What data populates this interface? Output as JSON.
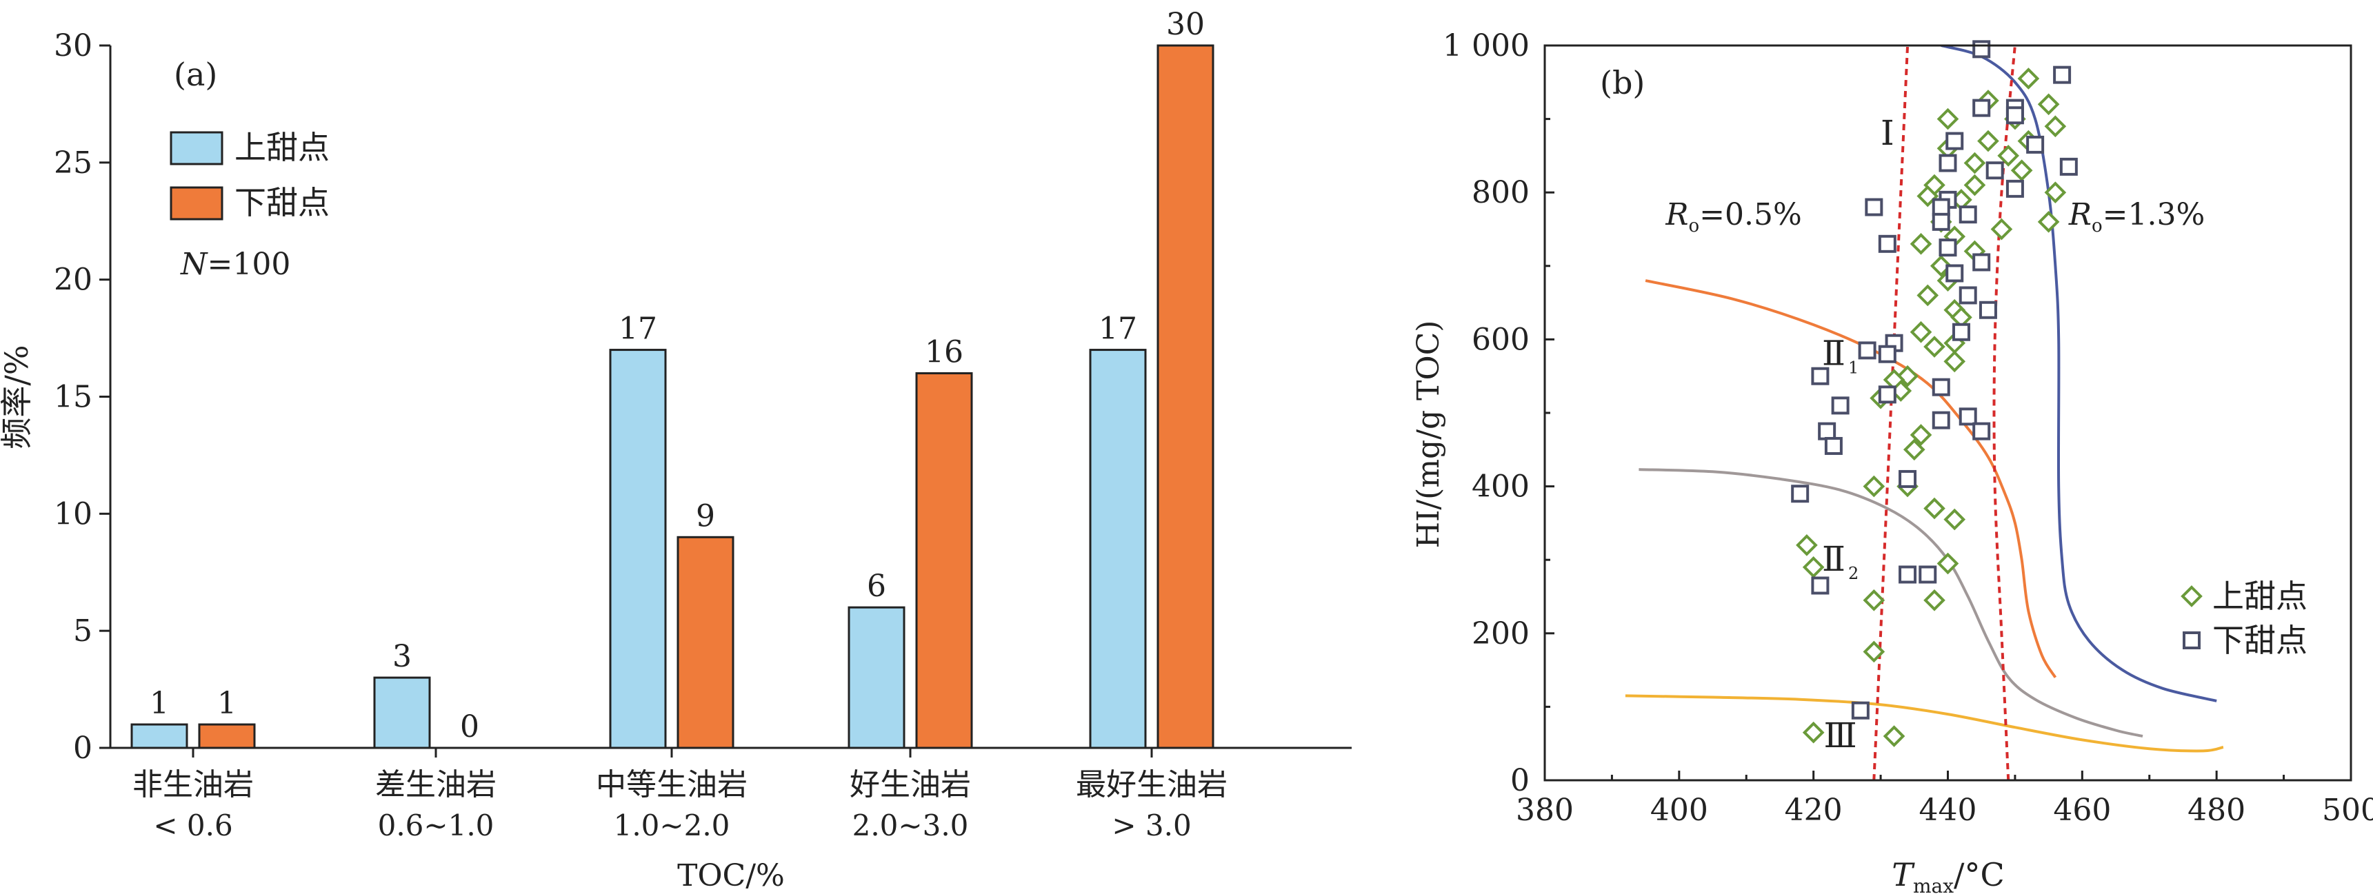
{
  "chart_data": [
    {
      "type": "bar",
      "panel_label": "(a)",
      "ylabel": "频率/%",
      "xlabel": "TOC/%",
      "ylim": [
        0,
        30
      ],
      "yticks": [
        0,
        5,
        10,
        15,
        20,
        25,
        30
      ],
      "categories": [
        {
          "name": "非生油岩",
          "range": "< 0.6"
        },
        {
          "name": "差生油岩",
          "range": "0.6~1.0"
        },
        {
          "name": "中等生油岩",
          "range": "1.0~2.0"
        },
        {
          "name": "好生油岩",
          "range": "2.0~3.0"
        },
        {
          "name": "最好生油岩",
          "range": "> 3.0"
        }
      ],
      "series": [
        {
          "name": "上甜点",
          "color": "#a6d8ef",
          "values": [
            1,
            3,
            17,
            6,
            17
          ]
        },
        {
          "name": "下甜点",
          "color": "#ef7b3a",
          "values": [
            1,
            0,
            9,
            16,
            30
          ]
        }
      ],
      "annotation": {
        "prefix": "N",
        "text": "=100"
      },
      "legend": "top-left",
      "grid": false
    },
    {
      "type": "scatter",
      "panel_label": "(b)",
      "ylabel": "HI/(mg/g TOC)",
      "xlabel": {
        "symbol": "T",
        "subscript": "max",
        "unit": "/°C"
      },
      "xlim": [
        380,
        500
      ],
      "ylim": [
        0,
        1000
      ],
      "xticks": [
        380,
        400,
        420,
        440,
        460,
        480,
        500
      ],
      "yticks": [
        {
          "value": 0,
          "label": "0"
        },
        {
          "value": 200,
          "label": "200"
        },
        {
          "value": 400,
          "label": "400"
        },
        {
          "value": 600,
          "label": "600"
        },
        {
          "value": 800,
          "label": "800"
        },
        {
          "value": 1000,
          "label": "1 000"
        }
      ],
      "regions": [
        {
          "label": "Ⅰ",
          "sub": "",
          "x": 431,
          "y": 880
        },
        {
          "label": "Ⅱ",
          "sub": "1",
          "x": 424,
          "y": 580
        },
        {
          "label": "Ⅱ",
          "sub": "2",
          "x": 424,
          "y": 300
        },
        {
          "label": "Ⅲ",
          "sub": "",
          "x": 424,
          "y": 60
        }
      ],
      "ro_lines": [
        {
          "prefix": "R",
          "sub": "o",
          "value": "=0.5%",
          "label_x": 398,
          "label_y": 770,
          "points": [
            [
              429,
              0
            ],
            [
              430,
              200
            ],
            [
              431,
              400
            ],
            [
              432,
              600
            ],
            [
              433,
              800
            ],
            [
              434,
              1000
            ]
          ]
        },
        {
          "prefix": "R",
          "sub": "o",
          "value": "=1.3%",
          "label_x": 458,
          "label_y": 770,
          "points": [
            [
              449,
              0
            ],
            [
              448,
              200
            ],
            [
              447,
              400
            ],
            [
              447,
              600
            ],
            [
              448,
              800
            ],
            [
              450,
              1000
            ]
          ]
        }
      ],
      "type_curves": [
        {
          "color": "#4a5aa0",
          "points": [
            [
              439,
              1000
            ],
            [
              445,
              985
            ],
            [
              450,
              950
            ],
            [
              453,
              900
            ],
            [
              455,
              800
            ],
            [
              456,
              700
            ],
            [
              456.5,
              600
            ],
            [
              456.5,
              400
            ],
            [
              457,
              300
            ],
            [
              458,
              240
            ],
            [
              461,
              190
            ],
            [
              466,
              150
            ],
            [
              472,
              125
            ],
            [
              480,
              108
            ]
          ]
        },
        {
          "color": "#ef7b3a",
          "points": [
            [
              395,
              680
            ],
            [
              408,
              655
            ],
            [
              420,
              620
            ],
            [
              430,
              580
            ],
            [
              437,
              540
            ],
            [
              442,
              490
            ],
            [
              446,
              440
            ],
            [
              448.5,
              390
            ],
            [
              450,
              350
            ],
            [
              451,
              300
            ],
            [
              452,
              230
            ],
            [
              454,
              170
            ],
            [
              456,
              140
            ]
          ]
        },
        {
          "color": "#a09898",
          "points": [
            [
              394,
              423
            ],
            [
              405,
              420
            ],
            [
              415,
              410
            ],
            [
              424,
              395
            ],
            [
              431,
              370
            ],
            [
              436,
              340
            ],
            [
              440,
              300
            ],
            [
              443,
              250
            ],
            [
              446,
              190
            ],
            [
              449,
              140
            ],
            [
              453,
              110
            ],
            [
              459,
              85
            ],
            [
              465,
              68
            ],
            [
              469,
              60
            ]
          ]
        },
        {
          "color": "#f2b233",
          "points": [
            [
              392,
              115
            ],
            [
              405,
              113
            ],
            [
              418,
              110
            ],
            [
              430,
              103
            ],
            [
              440,
              90
            ],
            [
              450,
              72
            ],
            [
              460,
              55
            ],
            [
              470,
              43
            ],
            [
              478,
              40
            ],
            [
              481,
              45
            ]
          ]
        }
      ],
      "series": [
        {
          "name": "上甜点",
          "marker": "diamond",
          "color": "#6a9a3a",
          "points": [
            [
              452,
              955
            ],
            [
              446,
              925
            ],
            [
              440,
              900
            ],
            [
              455,
              920
            ],
            [
              450,
              900
            ],
            [
              456,
              890
            ],
            [
              446,
              870
            ],
            [
              452,
              870
            ],
            [
              440,
              860
            ],
            [
              449,
              850
            ],
            [
              444,
              840
            ],
            [
              451,
              830
            ],
            [
              438,
              810
            ],
            [
              444,
              810
            ],
            [
              437,
              795
            ],
            [
              442,
              790
            ],
            [
              456,
              800
            ],
            [
              455,
              760
            ],
            [
              439,
              760
            ],
            [
              448,
              750
            ],
            [
              441,
              740
            ],
            [
              436,
              730
            ],
            [
              444,
              720
            ],
            [
              439,
              700
            ],
            [
              440,
              680
            ],
            [
              437,
              660
            ],
            [
              441,
              640
            ],
            [
              442,
              630
            ],
            [
              436,
              610
            ],
            [
              441,
              595
            ],
            [
              438,
              590
            ],
            [
              441,
              570
            ],
            [
              434,
              550
            ],
            [
              432,
              545
            ],
            [
              433,
              530
            ],
            [
              430,
              520
            ],
            [
              436,
              470
            ],
            [
              435,
              450
            ],
            [
              434,
              400
            ],
            [
              429,
              400
            ],
            [
              438,
              370
            ],
            [
              441,
              355
            ],
            [
              419,
              320
            ],
            [
              420,
              290
            ],
            [
              440,
              295
            ],
            [
              438,
              245
            ],
            [
              429,
              245
            ],
            [
              429,
              175
            ],
            [
              420,
              65
            ],
            [
              432,
              60
            ]
          ]
        },
        {
          "name": "下甜点",
          "marker": "square",
          "color": "#4a4e68",
          "points": [
            [
              445,
              995
            ],
            [
              457,
              960
            ],
            [
              445,
              915
            ],
            [
              450,
              915
            ],
            [
              450,
              905
            ],
            [
              458,
              835
            ],
            [
              453,
              865
            ],
            [
              441,
              870
            ],
            [
              440,
              840
            ],
            [
              447,
              830
            ],
            [
              450,
              805
            ],
            [
              440,
              790
            ],
            [
              439,
              780
            ],
            [
              429,
              780
            ],
            [
              443,
              770
            ],
            [
              439,
              760
            ],
            [
              431,
              730
            ],
            [
              440,
              725
            ],
            [
              445,
              705
            ],
            [
              441,
              690
            ],
            [
              443,
              660
            ],
            [
              446,
              640
            ],
            [
              442,
              610
            ],
            [
              432,
              595
            ],
            [
              428,
              585
            ],
            [
              431,
              580
            ],
            [
              421,
              550
            ],
            [
              439,
              535
            ],
            [
              431,
              525
            ],
            [
              424,
              510
            ],
            [
              443,
              495
            ],
            [
              439,
              490
            ],
            [
              445,
              475
            ],
            [
              422,
              475
            ],
            [
              423,
              455
            ],
            [
              434,
              410
            ],
            [
              418,
              390
            ],
            [
              434,
              280
            ],
            [
              437,
              280
            ],
            [
              421,
              265
            ],
            [
              427,
              95
            ]
          ]
        }
      ],
      "legend": "bottom-right",
      "grid": false
    }
  ]
}
